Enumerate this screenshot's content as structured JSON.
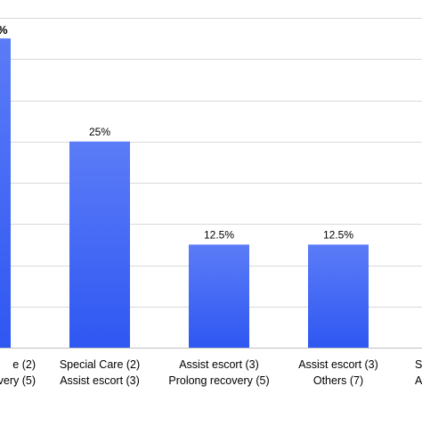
{
  "colors": {
    "bar_top": "#5b7cf7",
    "bar_bottom": "#2f57f2",
    "grid": "#d9d9d9",
    "axis": "#bfbfbf",
    "text": "#000000"
  },
  "chart_data": {
    "type": "bar",
    "categories": [
      [
        "...e (2)",
        "...overy (5)"
      ],
      [
        "Special Care (2)",
        "Assist escort (3)"
      ],
      [
        "Assist escort (3)",
        "Prolong recovery (5)"
      ],
      [
        "Assist escort (3)",
        "Others (7)"
      ],
      [
        "S...",
        "A..."
      ]
    ],
    "values": [
      37.5,
      25,
      12.5,
      12.5,
      null
    ],
    "data_labels": [
      "...",
      "25%",
      "12.5%",
      "12.5%",
      ""
    ],
    "ylim": [
      0,
      40
    ],
    "grid": true,
    "legend": "none",
    "title": "",
    "xlabel": "",
    "ylabel": ""
  }
}
